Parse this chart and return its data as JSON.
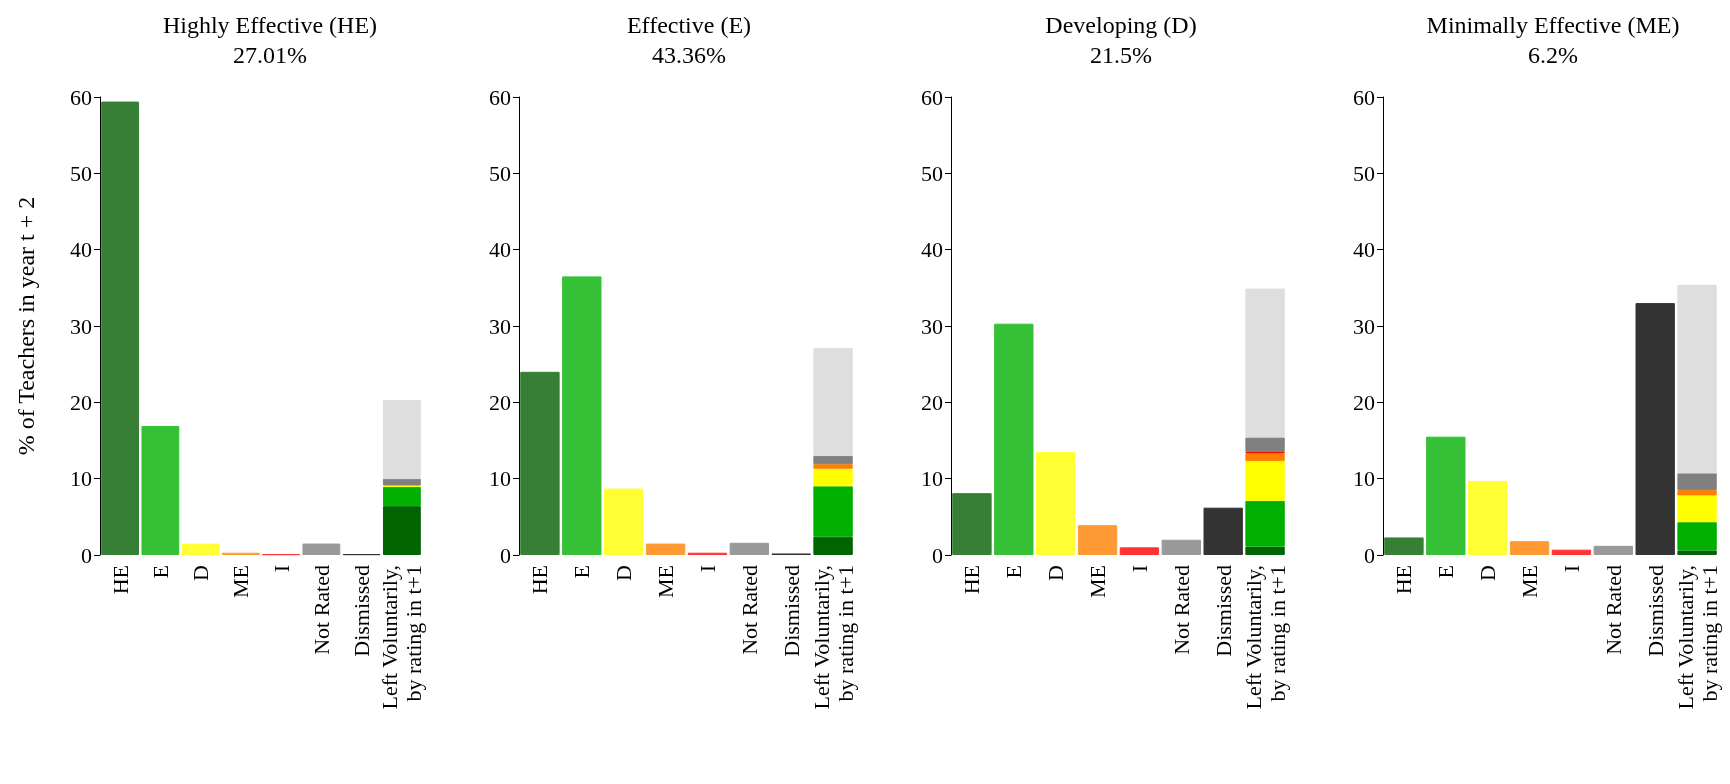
{
  "chart_data": [
    {
      "type": "bar",
      "title": "Highly Effective (HE)",
      "subtitle": "27.01%",
      "ylabel": "% of Teachers in year t + 2",
      "categories": [
        "HE",
        "E",
        "D",
        "ME",
        "I",
        "Not Rated",
        "Dismissed",
        "Left Voluntarily, by rating in t+1"
      ],
      "stacked": true,
      "ylim": [
        0,
        60
      ],
      "yticks": [
        0,
        10,
        20,
        30,
        40,
        50,
        60
      ],
      "grid": false,
      "series": [
        {
          "values": [
            59.4,
            16.9,
            1.5,
            0.3,
            0.1,
            1.5,
            0.1,
            null
          ],
          "colors": [
            "#367f34",
            "#36c035",
            "#ffff33",
            "#ff9933",
            "#ff3333",
            "#999999",
            "#333333",
            null
          ]
        },
        {
          "color": "#006400",
          "values": [
            null,
            null,
            null,
            null,
            null,
            null,
            null,
            6.4
          ]
        },
        {
          "color": "#00b000",
          "values": [
            null,
            null,
            null,
            null,
            null,
            null,
            null,
            2.5
          ]
        },
        {
          "color": "#ffff00",
          "values": [
            null,
            null,
            null,
            null,
            null,
            null,
            null,
            0.2
          ]
        },
        {
          "color": "#808080",
          "values": [
            null,
            null,
            null,
            null,
            null,
            null,
            null,
            0.9
          ]
        },
        {
          "color": "#dedede",
          "values": [
            null,
            null,
            null,
            null,
            null,
            null,
            null,
            10.3
          ]
        }
      ]
    },
    {
      "type": "bar",
      "title": "Effective (E)",
      "subtitle": "43.36%",
      "categories": [
        "HE",
        "E",
        "D",
        "ME",
        "I",
        "Not Rated",
        "Dismissed",
        "Left Voluntarily, by rating in t+1"
      ],
      "stacked": true,
      "ylim": [
        0,
        60
      ],
      "yticks": [
        0,
        10,
        20,
        30,
        40,
        50,
        60
      ],
      "grid": false,
      "series": [
        {
          "values": [
            24.0,
            36.5,
            8.7,
            1.5,
            0.3,
            1.6,
            0.2,
            null
          ],
          "colors": [
            "#367f34",
            "#36c035",
            "#ffff33",
            "#ff9933",
            "#ff3333",
            "#999999",
            "#333333",
            null
          ]
        },
        {
          "color": "#006400",
          "values": [
            null,
            null,
            null,
            null,
            null,
            null,
            null,
            2.4
          ]
        },
        {
          "color": "#00b000",
          "values": [
            null,
            null,
            null,
            null,
            null,
            null,
            null,
            6.6
          ]
        },
        {
          "color": "#ffff00",
          "values": [
            null,
            null,
            null,
            null,
            null,
            null,
            null,
            2.3
          ]
        },
        {
          "color": "#ff8000",
          "values": [
            null,
            null,
            null,
            null,
            null,
            null,
            null,
            0.6
          ]
        },
        {
          "color": "#808080",
          "values": [
            null,
            null,
            null,
            null,
            null,
            null,
            null,
            1.1
          ]
        },
        {
          "color": "#dedede",
          "values": [
            null,
            null,
            null,
            null,
            null,
            null,
            null,
            14.1
          ]
        }
      ]
    },
    {
      "type": "bar",
      "title": "Developing (D)",
      "subtitle": "21.5%",
      "categories": [
        "HE",
        "E",
        "D",
        "ME",
        "I",
        "Not Rated",
        "Dismissed",
        "Left Voluntarily, by rating in t+1"
      ],
      "stacked": true,
      "ylim": [
        0,
        60
      ],
      "yticks": [
        0,
        10,
        20,
        30,
        40,
        50,
        60
      ],
      "grid": false,
      "series": [
        {
          "values": [
            8.1,
            30.3,
            13.5,
            3.9,
            1.0,
            2.0,
            6.2,
            null
          ],
          "colors": [
            "#367f34",
            "#36c035",
            "#ffff33",
            "#ff9933",
            "#ff3333",
            "#999999",
            "#333333",
            null
          ]
        },
        {
          "color": "#006400",
          "values": [
            null,
            null,
            null,
            null,
            null,
            null,
            null,
            1.1
          ]
        },
        {
          "color": "#00b000",
          "values": [
            null,
            null,
            null,
            null,
            null,
            null,
            null,
            6.0
          ]
        },
        {
          "color": "#ffff00",
          "values": [
            null,
            null,
            null,
            null,
            null,
            null,
            null,
            5.2
          ]
        },
        {
          "color": "#ff8000",
          "values": [
            null,
            null,
            null,
            null,
            null,
            null,
            null,
            1.0
          ]
        },
        {
          "color": "#ff0000",
          "values": [
            null,
            null,
            null,
            null,
            null,
            null,
            null,
            0.2
          ]
        },
        {
          "color": "#808080",
          "values": [
            null,
            null,
            null,
            null,
            null,
            null,
            null,
            1.9
          ]
        },
        {
          "color": "#dedede",
          "values": [
            null,
            null,
            null,
            null,
            null,
            null,
            null,
            19.5
          ]
        }
      ]
    },
    {
      "type": "bar",
      "title": "Minimally Effective (ME)",
      "subtitle": "6.2%",
      "categories": [
        "HE",
        "E",
        "D",
        "ME",
        "I",
        "Not Rated",
        "Dismissed",
        "Left Voluntarily, by rating in t+1"
      ],
      "stacked": true,
      "ylim": [
        0,
        60
      ],
      "yticks": [
        0,
        10,
        20,
        30,
        40,
        50,
        60
      ],
      "grid": false,
      "series": [
        {
          "values": [
            2.3,
            15.5,
            9.7,
            1.8,
            0.7,
            1.2,
            33.0,
            null
          ],
          "colors": [
            "#367f34",
            "#36c035",
            "#ffff33",
            "#ff9933",
            "#ff3333",
            "#999999",
            "#333333",
            null
          ]
        },
        {
          "color": "#006400",
          "values": [
            null,
            null,
            null,
            null,
            null,
            null,
            null,
            0.6
          ]
        },
        {
          "color": "#00b000",
          "values": [
            null,
            null,
            null,
            null,
            null,
            null,
            null,
            3.7
          ]
        },
        {
          "color": "#ffff00",
          "values": [
            null,
            null,
            null,
            null,
            null,
            null,
            null,
            3.5
          ]
        },
        {
          "color": "#ff8000",
          "values": [
            null,
            null,
            null,
            null,
            null,
            null,
            null,
            0.7
          ]
        },
        {
          "color": "#808080",
          "values": [
            null,
            null,
            null,
            null,
            null,
            null,
            null,
            2.2
          ]
        },
        {
          "color": "#dedede",
          "values": [
            null,
            null,
            null,
            null,
            null,
            null,
            null,
            24.7
          ]
        }
      ]
    }
  ]
}
